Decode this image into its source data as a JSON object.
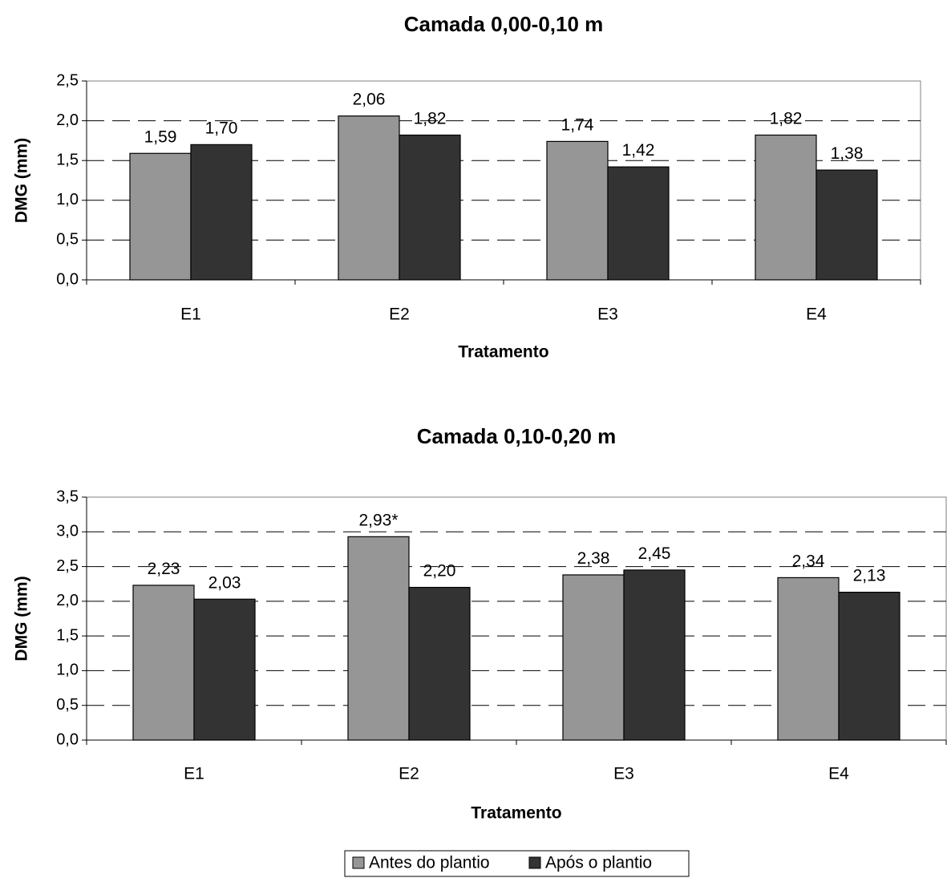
{
  "legend": {
    "items": [
      {
        "label": "Antes do plantio",
        "color": "#969696"
      },
      {
        "label": "Após o plantio",
        "color": "#333333"
      }
    ]
  },
  "chart_data": [
    {
      "type": "bar",
      "title": "Camada 0,00-0,10 m",
      "xlabel": "Tratamento",
      "ylabel": "DMG (mm)",
      "ylim": [
        0,
        2.5
      ],
      "ytick_labels": [
        "0,0",
        "0,5",
        "1,0",
        "1,5",
        "2,0",
        "2,5"
      ],
      "grid": "horizontal dashed",
      "categories": [
        "E1",
        "E2",
        "E3",
        "E4"
      ],
      "series": [
        {
          "name": "Antes do plantio",
          "color": "#969696",
          "values": [
            1.59,
            2.06,
            1.74,
            1.82
          ],
          "labels": [
            "1,59",
            "2,06",
            "1,74",
            "1,82"
          ]
        },
        {
          "name": "Após o plantio",
          "color": "#333333",
          "values": [
            1.7,
            1.82,
            1.42,
            1.38
          ],
          "labels": [
            "1,70",
            "1,82",
            "1,42",
            "1,38"
          ]
        }
      ]
    },
    {
      "type": "bar",
      "title": "Camada 0,10-0,20 m",
      "xlabel": "Tratamento",
      "ylabel": "DMG (mm)",
      "ylim": [
        0,
        3.5
      ],
      "ytick_labels": [
        "0,0",
        "0,5",
        "1,0",
        "1,5",
        "2,0",
        "2,5",
        "3,0",
        "3,5"
      ],
      "grid": "horizontal dashed",
      "categories": [
        "E1",
        "E2",
        "E3",
        "E4"
      ],
      "series": [
        {
          "name": "Antes do plantio",
          "color": "#969696",
          "values": [
            2.23,
            2.93,
            2.38,
            2.34
          ],
          "labels": [
            "2,23",
            "2,93*",
            "2,38",
            "2,34"
          ]
        },
        {
          "name": "Após o plantio",
          "color": "#333333",
          "values": [
            2.03,
            2.2,
            2.45,
            2.13
          ],
          "labels": [
            "2,03",
            "2,20",
            "2,45",
            "2,13"
          ]
        }
      ],
      "legend_position": "bottom-center"
    }
  ]
}
